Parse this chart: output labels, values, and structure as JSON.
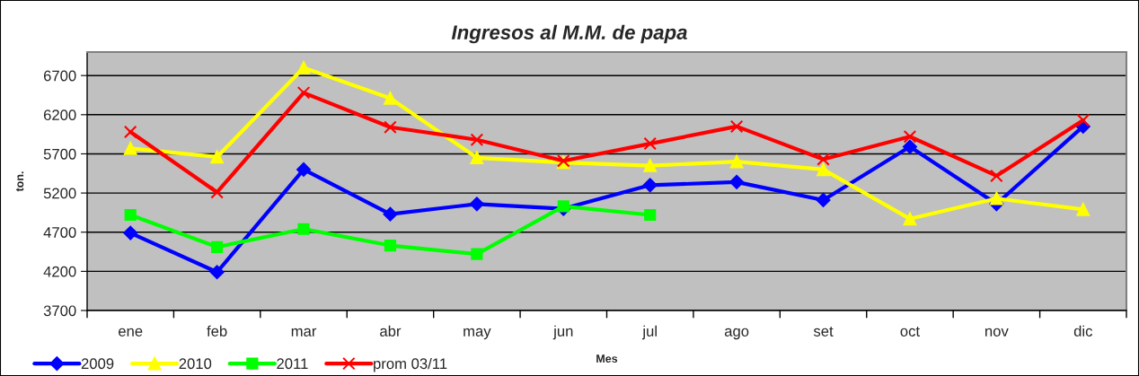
{
  "chart_data": {
    "type": "line",
    "title": "Ingresos al M.M. de papa",
    "xlabel": "Mes",
    "ylabel": "ton.",
    "categories": [
      "ene",
      "feb",
      "mar",
      "abr",
      "may",
      "jun",
      "jul",
      "ago",
      "set",
      "oct",
      "nov",
      "dic"
    ],
    "series": [
      {
        "name": "2009",
        "color": "#0000ff",
        "marker": "diamond",
        "values": [
          4690,
          4190,
          5500,
          4930,
          5060,
          5000,
          5300,
          5340,
          5110,
          5790,
          5060,
          6050
        ]
      },
      {
        "name": "2010",
        "color": "#ffff00",
        "marker": "triangle",
        "values": [
          5770,
          5660,
          6800,
          6410,
          5650,
          5590,
          5550,
          5600,
          5500,
          4870,
          5130,
          4990
        ]
      },
      {
        "name": "2011",
        "color": "#00ff00",
        "marker": "square",
        "values": [
          4920,
          4510,
          4740,
          4530,
          4420,
          5030,
          4920,
          null,
          null,
          null,
          null,
          null
        ]
      },
      {
        "name": "prom 03/11",
        "color": "#ff0000",
        "marker": "cross",
        "values": [
          5980,
          5210,
          6480,
          6040,
          5880,
          5610,
          5830,
          6050,
          5630,
          5920,
          5420,
          6130
        ]
      }
    ],
    "ylim": [
      3700,
      7000
    ],
    "yticks": [
      3700,
      4200,
      4700,
      5200,
      5700,
      6200,
      6700
    ],
    "grid": "y",
    "legend": "bottom left",
    "line_style": "solid"
  }
}
